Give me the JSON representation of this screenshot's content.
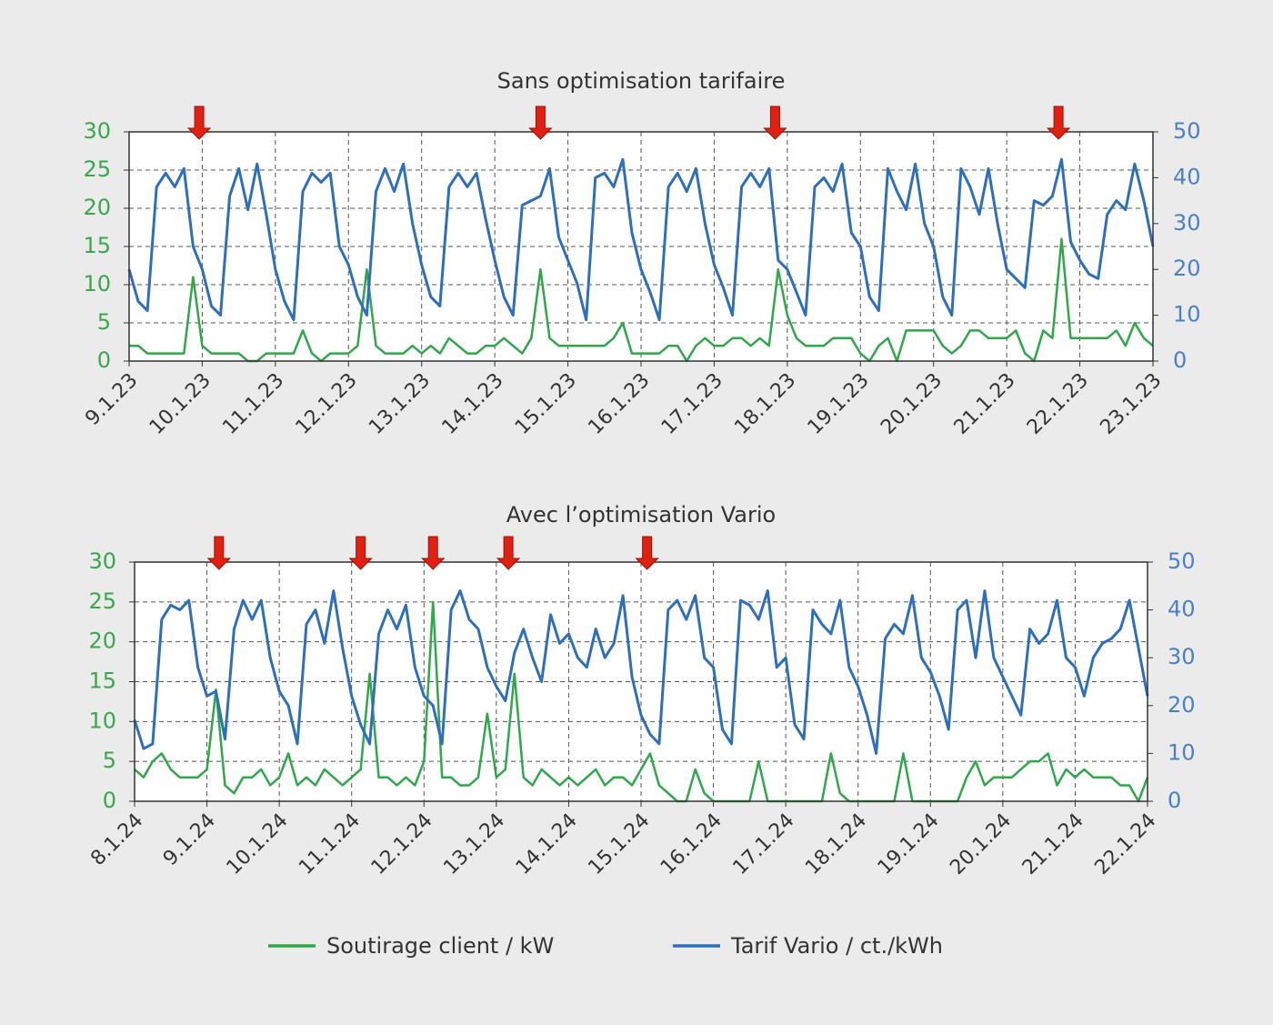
{
  "chart_data": [
    {
      "type": "line",
      "title": "Sans optimisation tarifaire",
      "x": [
        0,
        3,
        6,
        9,
        12,
        15,
        18,
        21,
        24,
        27,
        30,
        33,
        36,
        39,
        42,
        45,
        48,
        51,
        54,
        57,
        60,
        63,
        66,
        69,
        72,
        75,
        78,
        81,
        84,
        87,
        90,
        93,
        96,
        99,
        102,
        105,
        108,
        111,
        114,
        117,
        120,
        123,
        126,
        129,
        132,
        135,
        138,
        141,
        144,
        147,
        150,
        153,
        156,
        159,
        162,
        165,
        168,
        171,
        174,
        177,
        180,
        183,
        186,
        189,
        192,
        195,
        198,
        201,
        204,
        207,
        210,
        213,
        216,
        219,
        222,
        225,
        228,
        231,
        234,
        237,
        240,
        243,
        246,
        249,
        252,
        255,
        258,
        261,
        264,
        267,
        270,
        273,
        276,
        279,
        282,
        285,
        288,
        291,
        294,
        297,
        300,
        303,
        306,
        309,
        312,
        315,
        318,
        321,
        324,
        327,
        330,
        333,
        336
      ],
      "xlim": [
        0,
        336
      ],
      "xticks": [
        {
          "value": 0,
          "label": "9.1.23"
        },
        {
          "value": 24,
          "label": "10.1.23"
        },
        {
          "value": 48,
          "label": "11.1.23"
        },
        {
          "value": 72,
          "label": "12.1.23"
        },
        {
          "value": 96,
          "label": "13.1.23"
        },
        {
          "value": 120,
          "label": "14.1.23"
        },
        {
          "value": 144,
          "label": "15.1.23"
        },
        {
          "value": 168,
          "label": "16.1.23"
        },
        {
          "value": 192,
          "label": "17.1.23"
        },
        {
          "value": 216,
          "label": "18.1.23"
        },
        {
          "value": 240,
          "label": "19.1.23"
        },
        {
          "value": 264,
          "label": "20.1.23"
        },
        {
          "value": 288,
          "label": "21.1.23"
        },
        {
          "value": 312,
          "label": "22.1.23"
        },
        {
          "value": 336,
          "label": "23.1.23"
        }
      ],
      "ylim": [
        0,
        30
      ],
      "yticks": [
        0,
        5,
        10,
        15,
        20,
        25,
        30
      ],
      "y2lim": [
        0,
        50
      ],
      "y2ticks": [
        0,
        10,
        20,
        30,
        40,
        50
      ],
      "grid": true,
      "arrows": [
        23,
        135,
        212,
        305
      ],
      "series": [
        {
          "name": "Soutirage client / kW",
          "color": "#2fa84a",
          "axis": "y",
          "values": [
            2,
            2,
            1,
            1,
            1,
            1,
            1,
            11,
            2,
            1,
            1,
            1,
            1,
            0,
            0,
            1,
            1,
            1,
            1,
            4,
            1,
            0,
            1,
            1,
            1,
            2,
            12,
            2,
            1,
            1,
            1,
            2,
            1,
            2,
            1,
            3,
            2,
            1,
            1,
            2,
            2,
            3,
            2,
            1,
            3,
            12,
            3,
            2,
            2,
            2,
            2,
            2,
            2,
            3,
            5,
            1,
            1,
            1,
            1,
            2,
            2,
            0,
            2,
            3,
            2,
            2,
            3,
            3,
            2,
            3,
            2,
            12,
            6,
            3,
            2,
            2,
            2,
            3,
            3,
            3,
            1,
            0,
            2,
            3,
            0,
            4,
            4,
            4,
            4,
            2,
            1,
            2,
            4,
            4,
            3,
            3,
            3,
            4,
            1,
            0,
            4,
            3,
            16,
            3,
            3,
            3,
            3,
            3,
            4,
            2,
            5,
            3,
            2
          ]
        },
        {
          "name": "Tarif Vario / ct./kWh",
          "color": "#2e6fbd",
          "axis": "y2",
          "values": [
            20,
            13,
            11,
            38,
            41,
            38,
            42,
            25,
            20,
            12,
            10,
            36,
            42,
            33,
            43,
            32,
            20,
            13,
            9,
            37,
            41,
            39,
            41,
            25,
            21,
            14,
            10,
            37,
            42,
            37,
            43,
            30,
            21,
            14,
            12,
            38,
            41,
            38,
            41,
            31,
            22,
            14,
            10,
            34,
            35,
            36,
            42,
            27,
            22,
            17,
            9,
            40,
            41,
            38,
            44,
            28,
            20,
            15,
            9,
            38,
            41,
            37,
            42,
            30,
            21,
            16,
            10,
            38,
            41,
            38,
            42,
            22,
            20,
            15,
            10,
            38,
            40,
            37,
            43,
            28,
            25,
            14,
            11,
            42,
            37,
            33,
            43,
            30,
            25,
            14,
            10,
            42,
            38,
            32,
            42,
            30,
            20,
            18,
            16,
            35,
            34,
            36,
            44,
            26,
            22,
            19,
            18,
            32,
            35,
            33,
            43,
            35,
            25
          ]
        }
      ]
    },
    {
      "type": "line",
      "title": "Avec l’optimisation Vario",
      "x": [
        0,
        3,
        6,
        9,
        12,
        15,
        18,
        21,
        24,
        27,
        30,
        33,
        36,
        39,
        42,
        45,
        48,
        51,
        54,
        57,
        60,
        63,
        66,
        69,
        72,
        75,
        78,
        81,
        84,
        87,
        90,
        93,
        96,
        99,
        102,
        105,
        108,
        111,
        114,
        117,
        120,
        123,
        126,
        129,
        132,
        135,
        138,
        141,
        144,
        147,
        150,
        153,
        156,
        159,
        162,
        165,
        168,
        171,
        174,
        177,
        180,
        183,
        186,
        189,
        192,
        195,
        198,
        201,
        204,
        207,
        210,
        213,
        216,
        219,
        222,
        225,
        228,
        231,
        234,
        237,
        240,
        243,
        246,
        249,
        252,
        255,
        258,
        261,
        264,
        267,
        270,
        273,
        276,
        279,
        282,
        285,
        288,
        291,
        294,
        297,
        300,
        303,
        306,
        309,
        312,
        315,
        318,
        321,
        324,
        327,
        330,
        333,
        336
      ],
      "xlim": [
        0,
        336
      ],
      "xticks": [
        {
          "value": 0,
          "label": "8.1.24"
        },
        {
          "value": 24,
          "label": "9.1.24"
        },
        {
          "value": 48,
          "label": "10.1.24"
        },
        {
          "value": 72,
          "label": "11.1.24"
        },
        {
          "value": 96,
          "label": "12.1.24"
        },
        {
          "value": 120,
          "label": "13.1.24"
        },
        {
          "value": 144,
          "label": "14.1.24"
        },
        {
          "value": 168,
          "label": "15.1.24"
        },
        {
          "value": 192,
          "label": "16.1.24"
        },
        {
          "value": 216,
          "label": "17.1.24"
        },
        {
          "value": 240,
          "label": "18.1.24"
        },
        {
          "value": 264,
          "label": "19.1.24"
        },
        {
          "value": 288,
          "label": "20.1.24"
        },
        {
          "value": 312,
          "label": "21.1.24"
        },
        {
          "value": 336,
          "label": "22.1.24"
        }
      ],
      "ylim": [
        0,
        30
      ],
      "yticks": [
        0,
        5,
        10,
        15,
        20,
        25,
        30
      ],
      "y2lim": [
        0,
        50
      ],
      "y2ticks": [
        0,
        10,
        20,
        30,
        40,
        50
      ],
      "grid": true,
      "arrows": [
        28,
        75,
        99,
        124,
        170
      ],
      "series": [
        {
          "color": "#2fa84a",
          "axis": "y",
          "values": [
            4,
            3,
            5,
            6,
            4,
            3,
            3,
            3,
            4,
            14,
            2,
            1,
            3,
            3,
            4,
            2,
            3,
            6,
            2,
            3,
            2,
            4,
            3,
            2,
            3,
            4,
            16,
            3,
            3,
            2,
            3,
            2,
            5,
            25,
            3,
            3,
            2,
            2,
            3,
            11,
            3,
            4,
            16,
            3,
            2,
            4,
            3,
            2,
            3,
            2,
            3,
            4,
            2,
            3,
            3,
            2,
            4,
            6,
            2,
            1,
            0,
            0,
            4,
            1,
            0,
            0,
            0,
            0,
            0,
            5,
            0,
            0,
            0,
            0,
            0,
            0,
            0,
            6,
            1,
            0,
            0,
            0,
            0,
            0,
            0,
            6,
            0,
            0,
            0,
            0,
            0,
            0,
            3,
            5,
            2,
            3,
            3,
            3,
            4,
            5,
            5,
            6,
            2,
            4,
            3,
            4,
            3,
            3,
            3,
            2,
            2,
            0,
            3
          ]
        },
        {
          "color": "#2e6fbd",
          "axis": "y2",
          "values": [
            17,
            11,
            12,
            38,
            41,
            40,
            42,
            28,
            22,
            23,
            13,
            36,
            42,
            38,
            42,
            30,
            23,
            20,
            12,
            37,
            40,
            33,
            44,
            32,
            22,
            16,
            12,
            35,
            40,
            36,
            41,
            28,
            22,
            20,
            12,
            40,
            44,
            38,
            36,
            28,
            24,
            21,
            31,
            36,
            30,
            25,
            39,
            33,
            35,
            30,
            28,
            36,
            30,
            33,
            43,
            26,
            18,
            14,
            12,
            40,
            42,
            38,
            43,
            30,
            28,
            15,
            12,
            42,
            41,
            38,
            44,
            28,
            30,
            16,
            13,
            40,
            37,
            35,
            42,
            28,
            24,
            18,
            10,
            34,
            37,
            35,
            43,
            30,
            27,
            22,
            15,
            40,
            42,
            30,
            44,
            30,
            26,
            22,
            18,
            36,
            33,
            35,
            42,
            30,
            28,
            22,
            30,
            33,
            34,
            36,
            42,
            32,
            22
          ]
        }
      ]
    }
  ]
}
